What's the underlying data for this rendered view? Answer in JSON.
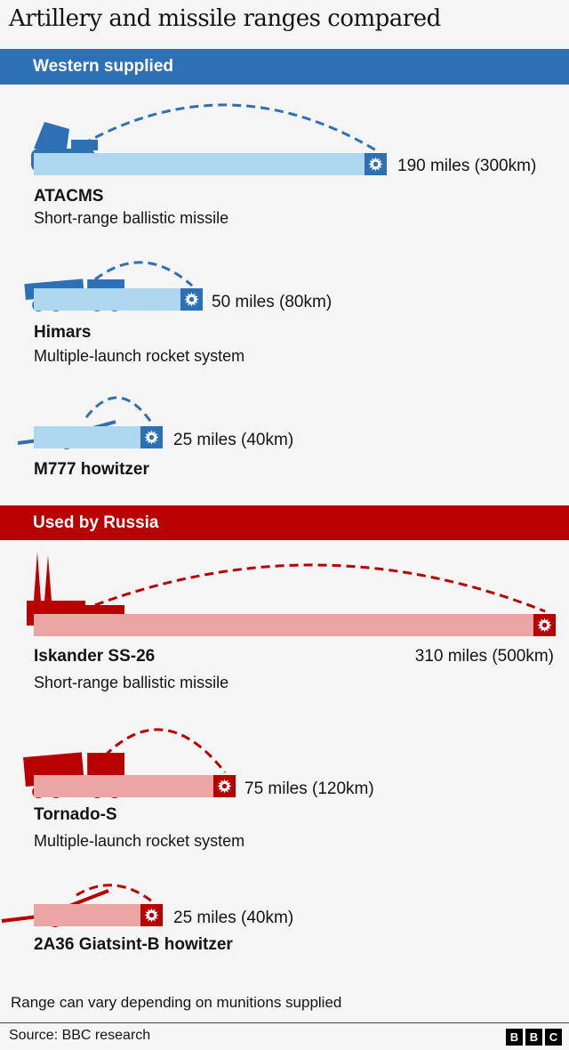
{
  "title": "Artillery and missile ranges compared",
  "colors": {
    "western_header": "#2d71b4",
    "western_bar": "#acd7ee",
    "western_icon": "#2d71b4",
    "russia_header": "#b80000",
    "russia_bar": "#eba4a4",
    "russia_icon": "#b80000"
  },
  "chart_data": {
    "type": "bar",
    "orientation": "horizontal",
    "groups": [
      {
        "label": "Western supplied",
        "items": [
          {
            "name": "ATACMS",
            "subtitle": "Short-range ballistic missile",
            "range_miles": 190,
            "range_km": 300,
            "range_label": "190 miles (300km)",
            "icon": "tracked-launcher"
          },
          {
            "name": "Himars",
            "subtitle": "Multiple-launch rocket system",
            "range_miles": 50,
            "range_km": 80,
            "range_label": "50 miles (80km)",
            "icon": "wheeled-rocket-launcher"
          },
          {
            "name": "M777 howitzer",
            "subtitle": "",
            "range_miles": 25,
            "range_km": 40,
            "range_label": "25 miles (40km)",
            "icon": "howitzer"
          }
        ]
      },
      {
        "label": "Used by Russia",
        "items": [
          {
            "name": "Iskander SS-26",
            "subtitle": "Short-range ballistic missile",
            "range_miles": 310,
            "range_km": 500,
            "range_label": "310 miles (500km)",
            "icon": "missile-truck"
          },
          {
            "name": "Tornado-S",
            "subtitle": "Multiple-launch rocket system",
            "range_miles": 75,
            "range_km": 120,
            "range_label": "75 miles (120km)",
            "icon": "wheeled-rocket-launcher"
          },
          {
            "name": "2A36 Giatsint-B howitzer",
            "subtitle": "",
            "range_miles": 25,
            "range_km": 40,
            "range_label": "25 miles (40km)",
            "icon": "howitzer"
          }
        ]
      }
    ]
  },
  "note": "Range can vary depending on munitions supplied",
  "source": "Source: BBC research",
  "logo": [
    "B",
    "B",
    "C"
  ]
}
